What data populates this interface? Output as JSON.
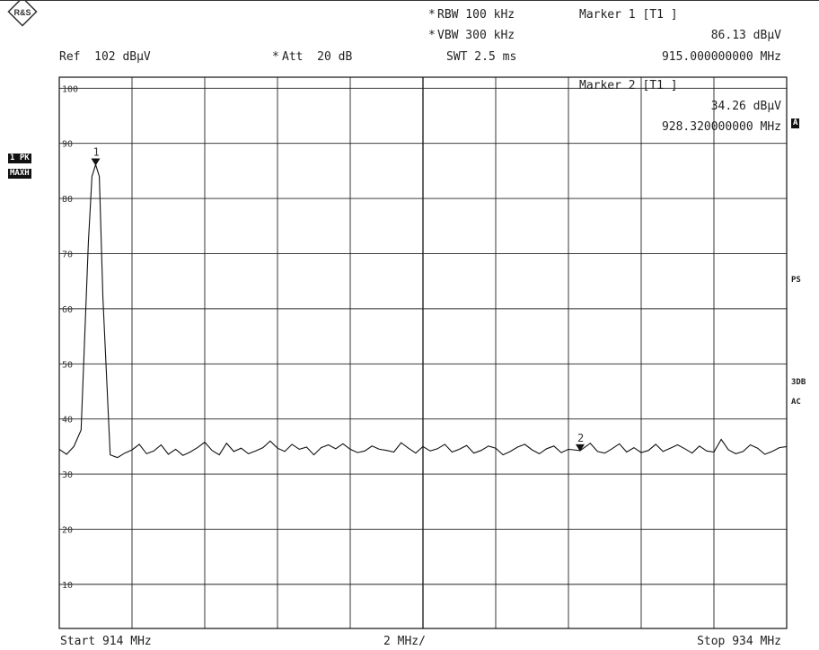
{
  "logo_text": "R&S",
  "header": {
    "rbw": "RBW 100 kHz",
    "vbw": "VBW 300 kHz",
    "swt": "SWT 2.5 ms",
    "ref": "Ref  102 dBµV",
    "att": "Att  20 dB",
    "star": "*"
  },
  "marker1": {
    "title": "Marker 1 [T1 ]",
    "level": "86.13 dBµV",
    "freq": "915.000000000 MHz"
  },
  "marker2": {
    "title": "Marker 2 [T1 ]",
    "level": "34.26 dBµV",
    "freq": "928.320000000 MHz"
  },
  "left_labels": {
    "trace": "1 PK",
    "detector": "MAXH"
  },
  "right_labels": {
    "a": "A",
    "ps": "PS",
    "db3": "3DB",
    "ac": "AC"
  },
  "footer": {
    "start": "Start 914 MHz",
    "span": "2 MHz/",
    "stop": "Stop 934 MHz"
  },
  "chart_data": {
    "type": "line",
    "x_unit": "MHz",
    "y_unit": "dBµV",
    "xlim": [
      914,
      934
    ],
    "ylim": [
      2,
      102
    ],
    "y_ticks": [
      100,
      90,
      80,
      70,
      60,
      50,
      40,
      30,
      20,
      10
    ],
    "grid": true,
    "markers": [
      {
        "label": "1",
        "x": 915.0,
        "y": 86.13
      },
      {
        "label": "2",
        "x": 928.32,
        "y": 34.26
      }
    ],
    "series": [
      {
        "x": [
          914.0,
          914.2,
          914.4,
          914.6,
          914.8,
          914.9,
          915.0,
          915.1,
          915.2,
          915.4,
          915.6,
          915.8,
          916.0,
          916.2,
          916.4,
          916.6,
          916.8,
          917.0,
          917.2,
          917.4,
          917.6,
          917.8,
          918.0,
          918.2,
          918.4,
          918.6,
          918.8,
          919.0,
          919.2,
          919.4,
          919.6,
          919.8,
          920.0,
          920.2,
          920.4,
          920.6,
          920.8,
          921.0,
          921.2,
          921.4,
          921.6,
          921.8,
          922.0,
          922.2,
          922.4,
          922.6,
          922.8,
          923.0,
          923.2,
          923.4,
          923.6,
          923.8,
          924.0,
          924.2,
          924.4,
          924.6,
          924.8,
          925.0,
          925.2,
          925.4,
          925.6,
          925.8,
          926.0,
          926.2,
          926.4,
          926.6,
          926.8,
          927.0,
          927.2,
          927.4,
          927.6,
          927.8,
          928.0,
          928.32,
          928.6,
          928.8,
          929.0,
          929.2,
          929.4,
          929.6,
          929.8,
          930.0,
          930.2,
          930.4,
          930.6,
          930.8,
          931.0,
          931.2,
          931.4,
          931.6,
          931.8,
          932.0,
          932.2,
          932.4,
          932.6,
          932.8,
          933.0,
          933.2,
          933.4,
          933.6,
          933.8,
          934.0
        ],
        "y": [
          34.5,
          33.6,
          35.0,
          38.0,
          72.0,
          84.0,
          86.13,
          84.0,
          62.0,
          33.5,
          33.0,
          33.8,
          34.4,
          35.4,
          33.7,
          34.2,
          35.3,
          33.6,
          34.5,
          33.4,
          34.0,
          34.8,
          35.8,
          34.3,
          33.5,
          35.6,
          34.1,
          34.7,
          33.7,
          34.2,
          34.8,
          36.0,
          34.7,
          34.1,
          35.4,
          34.5,
          34.9,
          33.5,
          34.8,
          35.3,
          34.6,
          35.5,
          34.5,
          33.9,
          34.2,
          35.1,
          34.5,
          34.3,
          34.0,
          35.7,
          34.7,
          33.8,
          35.0,
          34.2,
          34.6,
          35.4,
          34.0,
          34.5,
          35.2,
          33.8,
          34.3,
          35.1,
          34.7,
          33.5,
          34.1,
          34.9,
          35.4,
          34.4,
          33.7,
          34.6,
          35.1,
          33.9,
          34.5,
          34.26,
          35.6,
          34.1,
          33.8,
          34.6,
          35.5,
          34.0,
          34.8,
          33.9,
          34.3,
          35.4,
          34.1,
          34.7,
          35.3,
          34.6,
          33.8,
          35.1,
          34.2,
          34.0,
          36.3,
          34.4,
          33.7,
          34.1,
          35.3,
          34.7,
          33.6,
          34.1,
          34.8,
          35.0
        ]
      }
    ]
  }
}
